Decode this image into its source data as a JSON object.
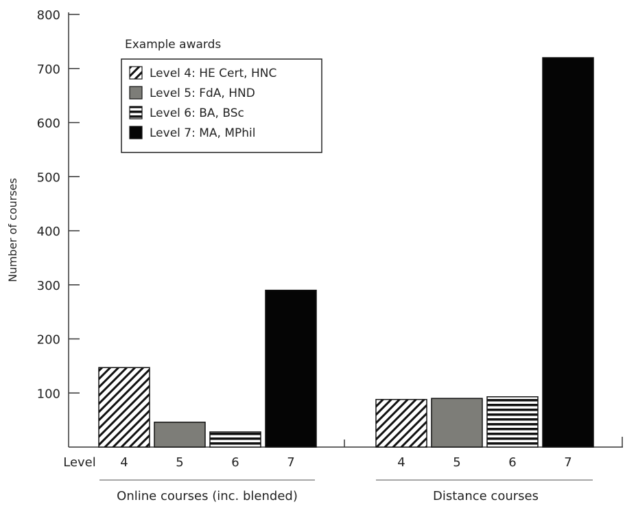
{
  "chart_data": {
    "type": "bar",
    "ylabel": "Number of courses",
    "yticks": [
      100,
      200,
      300,
      400,
      500,
      600,
      700,
      800
    ],
    "ylim": [
      0,
      800
    ],
    "level_label": "Level",
    "categories": [
      "4",
      "5",
      "6",
      "7"
    ],
    "groups": [
      {
        "name": "Online courses (inc. blended)",
        "values": [
          147,
          46,
          28,
          290
        ]
      },
      {
        "name": "Distance courses",
        "values": [
          88,
          90,
          93,
          720
        ]
      }
    ],
    "legend": {
      "title": "Example awards",
      "placement": "top-left",
      "entries": [
        {
          "label": "Level 4: HE Cert, HNC",
          "pattern": "diagonal"
        },
        {
          "label": "Level 5: FdA, HND",
          "pattern": "grey"
        },
        {
          "label": "Level 6: BA, BSc",
          "pattern": "horizontal"
        },
        {
          "label": "Level 7: MA, MPhil",
          "pattern": "black"
        }
      ]
    },
    "grid": false
  }
}
